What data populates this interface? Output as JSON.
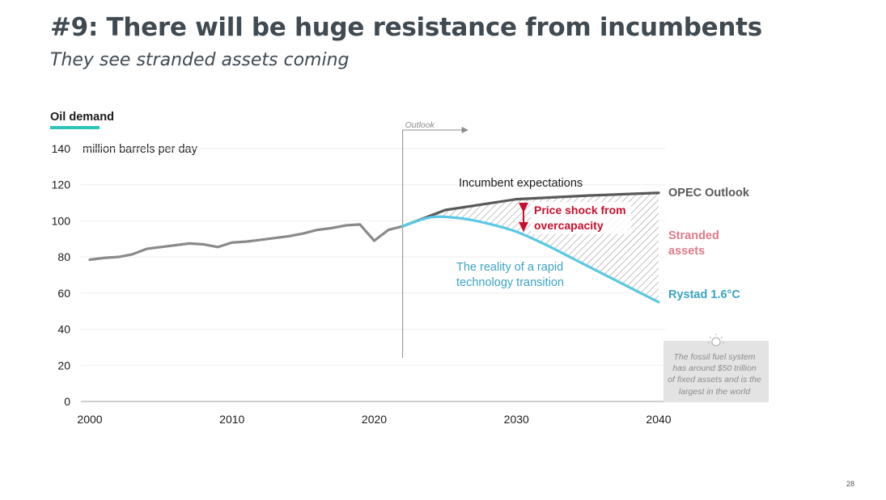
{
  "slide": {
    "title": "#9: There will be huge resistance from incumbents",
    "subtitle": "They see stranded assets coming",
    "page_number": "28"
  },
  "chart_data": {
    "type": "line",
    "title": "Oil demand",
    "ylabel": "million barrels per day",
    "xlabel": "",
    "xlim": [
      2000,
      2040
    ],
    "ylim": [
      0,
      140
    ],
    "x_ticks": [
      2000,
      2010,
      2020,
      2030,
      2040
    ],
    "y_ticks": [
      0,
      20,
      40,
      60,
      80,
      100,
      120,
      140
    ],
    "grid": "horizontal",
    "outlook_marker": {
      "x": 2022,
      "label": "Outlook"
    },
    "series": [
      {
        "name": "",
        "color": "#8a8a8a",
        "x": [
          2000,
          2001,
          2002,
          2003,
          2004,
          2005,
          2006,
          2007,
          2008,
          2009,
          2010,
          2011,
          2012,
          2013,
          2014,
          2015,
          2016,
          2017,
          2018,
          2019,
          2020,
          2021,
          2022
        ],
        "y": [
          78.5,
          79.5,
          80,
          81.5,
          84.5,
          85.5,
          86.5,
          87.5,
          87,
          85.5,
          88,
          88.5,
          89.5,
          90.5,
          91.5,
          93,
          95,
          96,
          97.5,
          98,
          89,
          95,
          97
        ]
      },
      {
        "name": "OPEC Outlook",
        "color": "#595959",
        "x": [
          2022,
          2025,
          2030,
          2035,
          2040
        ],
        "y": [
          97,
          106,
          112,
          114,
          115.5
        ]
      },
      {
        "name": "Rystad 1.6°C",
        "color": "#5bc8e6",
        "x": [
          2022,
          2024,
          2026,
          2028,
          2030,
          2032,
          2034,
          2036,
          2038,
          2040
        ],
        "y": [
          97,
          102,
          101.5,
          98.5,
          94,
          87,
          79,
          71,
          63,
          55
        ]
      }
    ],
    "annotations": {
      "incumbent": "Incumbent expectations",
      "price_shock_line1": "Price shock from",
      "price_shock_line2": "overcapacity",
      "reality_line1": "The reality of a rapid",
      "reality_line2": "technology transition",
      "opec_label": "OPEC Outlook",
      "stranded_line1": "Stranded",
      "stranded_line2": "assets",
      "rystad_label": "Rystad 1.6°C",
      "callout_lines": [
        "The fossil fuel system",
        "has around $50 trillion",
        "of fixed assets and is the",
        "largest in the world"
      ]
    },
    "colors": {
      "historical": "#8a8a8a",
      "opec": "#595959",
      "rystad": "#5bc8e6",
      "price_shock": "#c8102e",
      "stranded": "#e07a8a",
      "reality_text": "#3aa3c4",
      "title_underline": "#2ec4b6"
    }
  }
}
